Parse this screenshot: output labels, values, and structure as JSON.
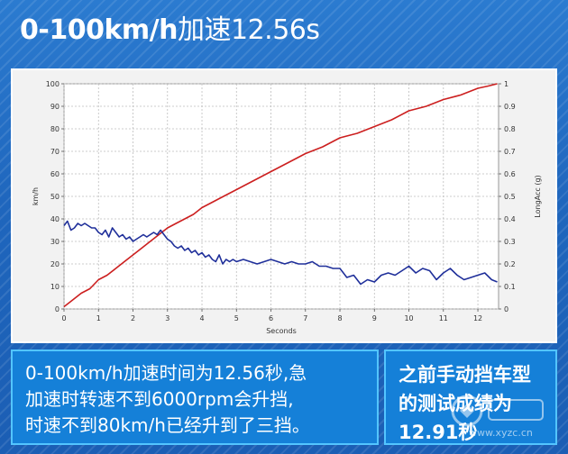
{
  "header": {
    "title_bold": "0-100km/h",
    "title_light": "加速12.56s"
  },
  "chart_data": {
    "type": "line",
    "title": "",
    "xlabel": "Seconds",
    "ylabel_left": "km/h",
    "ylabel_right": "LongAcc (g)",
    "xlim": [
      0,
      12.6
    ],
    "ylim_left": [
      0,
      100
    ],
    "ylim_right": [
      0,
      1
    ],
    "x_ticks": [
      "0",
      "1",
      "2",
      "3",
      "4",
      "5",
      "6",
      "7",
      "8",
      "9",
      "10",
      "11",
      "12"
    ],
    "y_ticks_left": [
      "0",
      "10",
      "20",
      "30",
      "40",
      "50",
      "60",
      "70",
      "80",
      "90",
      "100"
    ],
    "y_ticks_right": [
      "0",
      "0.1",
      "0.2",
      "0.3",
      "0.4",
      "0.5",
      "0.6",
      "0.7",
      "0.8",
      "0.9",
      "1"
    ],
    "grid": true,
    "series": [
      {
        "axis": "left",
        "color": "#cc1f1f",
        "x": [
          0,
          0.25,
          0.5,
          0.75,
          1,
          1.25,
          1.5,
          1.75,
          2,
          2.25,
          2.5,
          2.75,
          3,
          3.25,
          3.5,
          3.75,
          4,
          4.25,
          4.5,
          4.75,
          5,
          5.5,
          6,
          6.5,
          7,
          7.5,
          8,
          8.5,
          9,
          9.5,
          10,
          10.5,
          11,
          11.5,
          12,
          12.3,
          12.56
        ],
        "y": [
          1,
          4,
          7,
          9,
          13,
          15,
          18,
          21,
          24,
          27,
          30,
          33,
          36,
          38,
          40,
          42,
          45,
          47,
          49,
          51,
          53,
          57,
          61,
          65,
          69,
          72,
          76,
          78,
          81,
          84,
          88,
          90,
          93,
          95,
          98,
          99,
          100
        ]
      },
      {
        "axis": "right",
        "color": "#1f2f9a",
        "x": [
          0,
          0.1,
          0.2,
          0.3,
          0.4,
          0.5,
          0.6,
          0.7,
          0.8,
          0.9,
          1,
          1.1,
          1.2,
          1.3,
          1.4,
          1.5,
          1.6,
          1.7,
          1.8,
          1.9,
          2,
          2.1,
          2.2,
          2.3,
          2.4,
          2.5,
          2.6,
          2.7,
          2.8,
          2.9,
          3,
          3.1,
          3.2,
          3.3,
          3.4,
          3.5,
          3.6,
          3.7,
          3.8,
          3.9,
          4,
          4.1,
          4.2,
          4.3,
          4.4,
          4.5,
          4.6,
          4.7,
          4.8,
          4.9,
          5,
          5.2,
          5.4,
          5.6,
          5.8,
          6,
          6.2,
          6.4,
          6.6,
          6.8,
          7,
          7.2,
          7.4,
          7.6,
          7.8,
          8,
          8.2,
          8.4,
          8.6,
          8.8,
          9,
          9.2,
          9.4,
          9.6,
          9.8,
          10,
          10.2,
          10.4,
          10.6,
          10.8,
          11,
          11.2,
          11.4,
          11.6,
          11.8,
          12,
          12.2,
          12.4,
          12.56
        ],
        "y": [
          0.37,
          0.39,
          0.35,
          0.36,
          0.38,
          0.37,
          0.38,
          0.37,
          0.36,
          0.36,
          0.34,
          0.33,
          0.35,
          0.32,
          0.36,
          0.34,
          0.32,
          0.33,
          0.31,
          0.32,
          0.3,
          0.31,
          0.32,
          0.33,
          0.32,
          0.33,
          0.34,
          0.33,
          0.35,
          0.33,
          0.31,
          0.3,
          0.28,
          0.27,
          0.28,
          0.26,
          0.27,
          0.25,
          0.26,
          0.24,
          0.25,
          0.23,
          0.24,
          0.22,
          0.21,
          0.24,
          0.2,
          0.22,
          0.21,
          0.22,
          0.21,
          0.22,
          0.21,
          0.2,
          0.21,
          0.22,
          0.21,
          0.2,
          0.21,
          0.2,
          0.2,
          0.21,
          0.19,
          0.19,
          0.18,
          0.18,
          0.14,
          0.15,
          0.11,
          0.13,
          0.12,
          0.15,
          0.16,
          0.15,
          0.17,
          0.19,
          0.16,
          0.18,
          0.17,
          0.13,
          0.16,
          0.18,
          0.15,
          0.13,
          0.14,
          0.15,
          0.16,
          0.13,
          0.12
        ]
      }
    ]
  },
  "notes": {
    "left_line1": "0-100km/h加速时间为12.56秒,急",
    "left_line2": "加速时转速不到6000rpm会升挡,",
    "left_line3": "时速不到80km/h已经升到了三挡。",
    "right_line1": "之前手动挡车型",
    "right_line2": "的测试成绩为",
    "right_line3": "12.91秒"
  },
  "watermark": {
    "text": "www.xyzc.cn"
  }
}
